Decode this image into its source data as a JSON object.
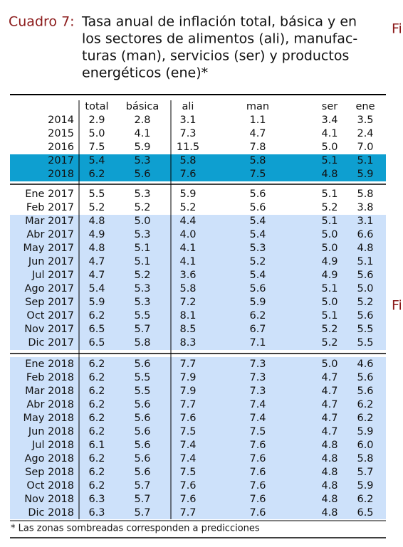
{
  "caption": {
    "label": "Cuadro 7:",
    "lines": [
      "Tasa anual de inflación total, básica y en",
      "los sectores de alimentos (ali), manufac-",
      "turas (man), servicios (ser) y productos",
      "energéticos (ene)*"
    ]
  },
  "side_text": [
    "Fi",
    "Fi"
  ],
  "table": {
    "columns": [
      "total",
      "básica",
      "ali",
      "man",
      "ser",
      "ene"
    ],
    "sections": [
      {
        "rows": [
          {
            "label": "2014",
            "values": [
              "2.9",
              "2.8",
              "3.1",
              "1.1",
              "3.4",
              "3.5"
            ]
          },
          {
            "label": "2015",
            "values": [
              "5.0",
              "4.1",
              "7.3",
              "4.7",
              "4.1",
              "2.4"
            ]
          },
          {
            "label": "2016",
            "values": [
              "7.5",
              "5.9",
              "11.5",
              "7.8",
              "5.0",
              "7.0"
            ]
          },
          {
            "label": "2017",
            "values": [
              "5.4",
              "5.3",
              "5.8",
              "5.8",
              "5.1",
              "5.1"
            ]
          },
          {
            "label": "2018",
            "values": [
              "6.2",
              "5.6",
              "7.6",
              "7.5",
              "4.8",
              "5.9"
            ]
          }
        ]
      },
      {
        "rows": [
          {
            "label": "Ene 2017",
            "values": [
              "5.5",
              "5.3",
              "5.9",
              "5.6",
              "5.1",
              "5.8"
            ]
          },
          {
            "label": "Feb 2017",
            "values": [
              "5.2",
              "5.2",
              "5.2",
              "5.6",
              "5.2",
              "3.8"
            ]
          },
          {
            "label": "Mar 2017",
            "values": [
              "4.8",
              "5.0",
              "4.4",
              "5.4",
              "5.1",
              "3.1"
            ]
          },
          {
            "label": "Abr 2017",
            "values": [
              "4.9",
              "5.3",
              "4.0",
              "5.4",
              "5.0",
              "6.6"
            ]
          },
          {
            "label": "May 2017",
            "values": [
              "4.8",
              "5.1",
              "4.1",
              "5.3",
              "5.0",
              "4.8"
            ]
          },
          {
            "label": "Jun 2017",
            "values": [
              "4.7",
              "5.1",
              "4.1",
              "5.2",
              "4.9",
              "5.1"
            ]
          },
          {
            "label": "Jul 2017",
            "values": [
              "4.7",
              "5.2",
              "3.6",
              "5.4",
              "4.9",
              "5.6"
            ]
          },
          {
            "label": "Ago 2017",
            "values": [
              "5.4",
              "5.3",
              "5.8",
              "5.6",
              "5.1",
              "5.0"
            ]
          },
          {
            "label": "Sep 2017",
            "values": [
              "5.9",
              "5.3",
              "7.2",
              "5.9",
              "5.0",
              "5.2"
            ]
          },
          {
            "label": "Oct 2017",
            "values": [
              "6.2",
              "5.5",
              "8.1",
              "6.2",
              "5.1",
              "5.6"
            ]
          },
          {
            "label": "Nov 2017",
            "values": [
              "6.5",
              "5.7",
              "8.5",
              "6.7",
              "5.2",
              "5.5"
            ]
          },
          {
            "label": "Dic 2017",
            "values": [
              "6.5",
              "5.8",
              "8.3",
              "7.1",
              "5.2",
              "5.5"
            ]
          }
        ]
      },
      {
        "rows": [
          {
            "label": "Ene 2018",
            "values": [
              "6.2",
              "5.6",
              "7.7",
              "7.3",
              "5.0",
              "4.6"
            ]
          },
          {
            "label": "Feb 2018",
            "values": [
              "6.2",
              "5.5",
              "7.9",
              "7.3",
              "4.7",
              "5.6"
            ]
          },
          {
            "label": "Mar 2018",
            "values": [
              "6.2",
              "5.5",
              "7.9",
              "7.3",
              "4.7",
              "5.6"
            ]
          },
          {
            "label": "Abr 2018",
            "values": [
              "6.2",
              "5.6",
              "7.7",
              "7.4",
              "4.7",
              "6.2"
            ]
          },
          {
            "label": "May 2018",
            "values": [
              "6.2",
              "5.6",
              "7.6",
              "7.4",
              "4.7",
              "6.2"
            ]
          },
          {
            "label": "Jun 2018",
            "values": [
              "6.2",
              "5.6",
              "7.5",
              "7.5",
              "4.7",
              "5.9"
            ]
          },
          {
            "label": "Jul 2018",
            "values": [
              "6.1",
              "5.6",
              "7.4",
              "7.6",
              "4.8",
              "6.0"
            ]
          },
          {
            "label": "Ago 2018",
            "values": [
              "6.2",
              "5.6",
              "7.4",
              "7.6",
              "4.8",
              "5.8"
            ]
          },
          {
            "label": "Sep 2018",
            "values": [
              "6.2",
              "5.6",
              "7.5",
              "7.6",
              "4.8",
              "5.7"
            ]
          },
          {
            "label": "Oct 2018",
            "values": [
              "6.2",
              "5.7",
              "7.6",
              "7.6",
              "4.8",
              "5.9"
            ]
          },
          {
            "label": "Nov 2018",
            "values": [
              "6.3",
              "5.7",
              "7.6",
              "7.6",
              "4.8",
              "6.2"
            ]
          },
          {
            "label": "Dic 2018",
            "values": [
              "6.3",
              "5.7",
              "7.7",
              "7.6",
              "4.8",
              "6.5"
            ]
          }
        ]
      }
    ]
  },
  "footnote": "* Las zonas sombreadas corresponden a predicciones"
}
